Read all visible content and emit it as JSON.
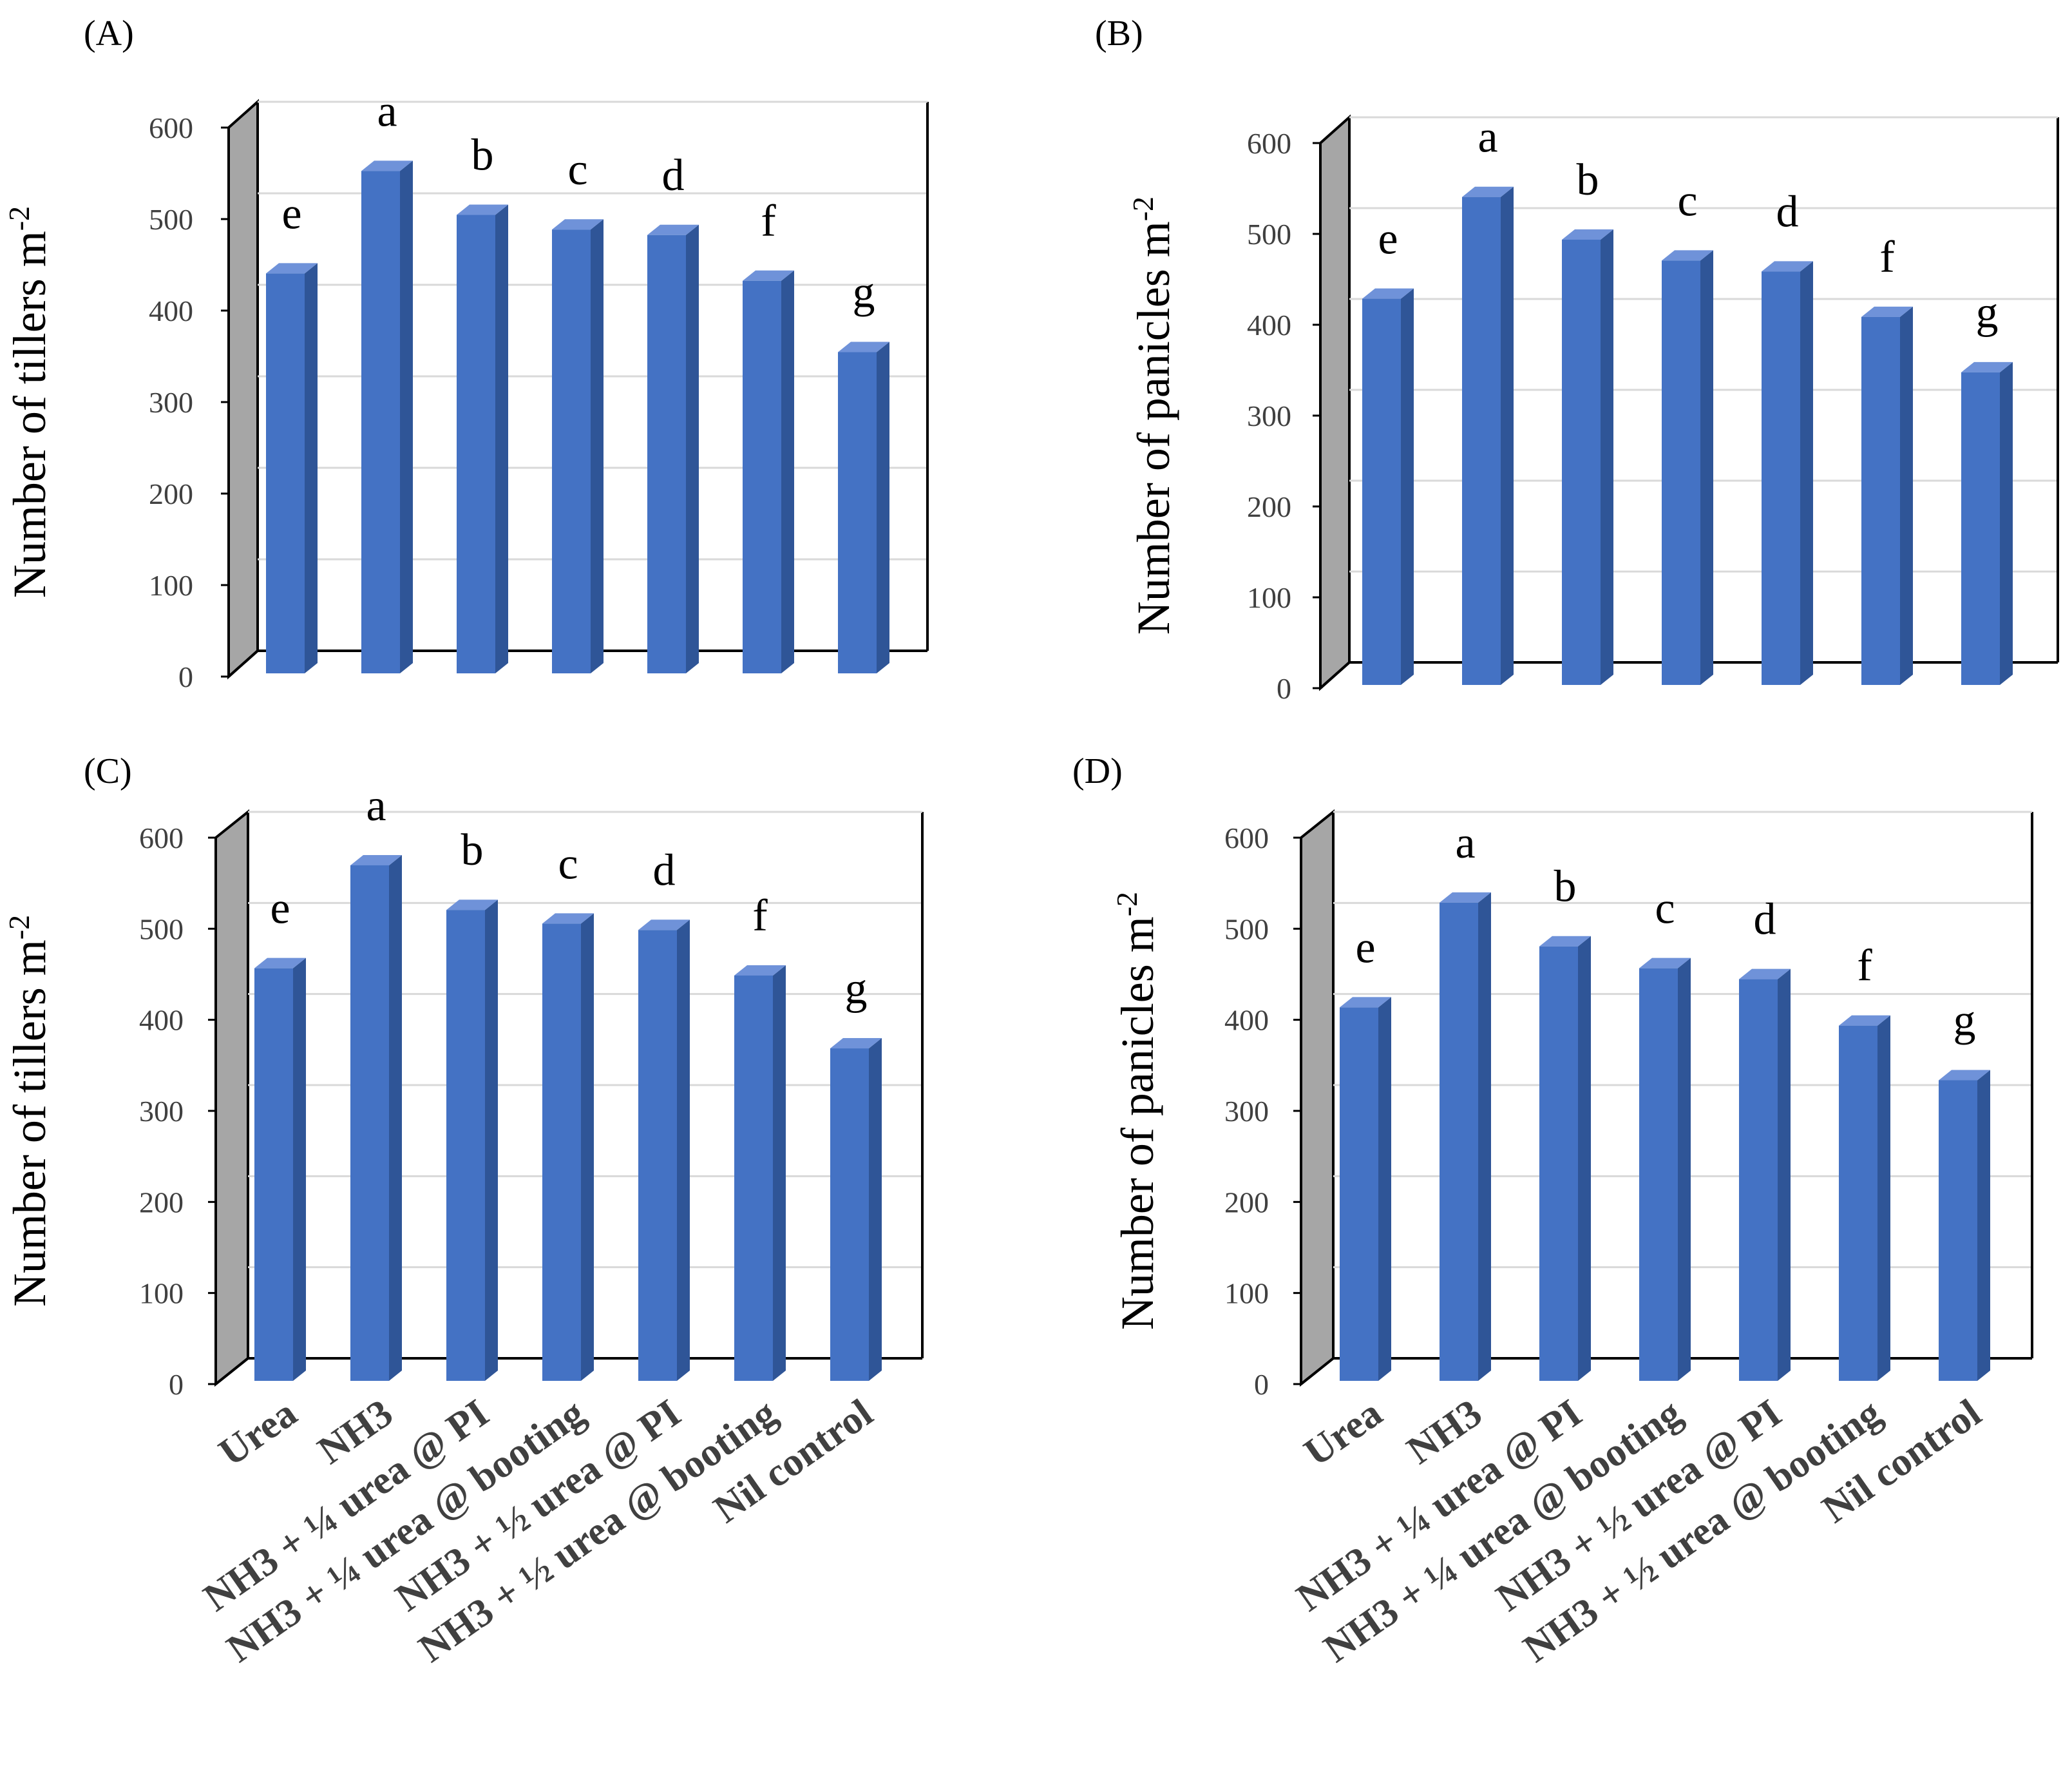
{
  "categories": [
    "Urea",
    "NH3",
    "NH3 + ¼ urea @ PI",
    "NH3 + ¼ urea @ booting",
    "NH3 + ½ urea @ PI",
    "NH3 + ½ urea @ booting",
    "Nil control"
  ],
  "colors": {
    "bar_front": "#4472C4",
    "bar_side": "#2F5597",
    "bar_top": "#6F92D9",
    "wall": "#A6A6A6",
    "wall_side": "#7F7F7F"
  },
  "chart_data": [
    {
      "type": "bar",
      "panel": "(A)",
      "ylabel": "Number of tillers m",
      "ylabel_sup": "-2",
      "ylim": [
        0,
        600
      ],
      "yticks": [
        "0",
        "100",
        "200",
        "300",
        "400",
        "500",
        "600"
      ],
      "grid": true,
      "categories": [
        "Urea",
        "NH3",
        "NH3 + ¼ urea @ PI",
        "NH3 + ¼ urea @ booting",
        "NH3 + ½ urea @ PI",
        "NH3 + ½ urea @ booting",
        "Nil control"
      ],
      "values": [
        430,
        542,
        494,
        478,
        472,
        422,
        344
      ],
      "letters": [
        "e",
        "a",
        "b",
        "c",
        "d",
        "f",
        "g"
      ]
    },
    {
      "type": "bar",
      "panel": "(B)",
      "ylabel": "Number of panicles m",
      "ylabel_sup": "-2",
      "ylim": [
        0,
        600
      ],
      "yticks": [
        "0",
        "100",
        "200",
        "300",
        "400",
        "500",
        "600"
      ],
      "grid": true,
      "categories": [
        "Urea",
        "NH3",
        "NH3 + ¼ urea @ PI",
        "NH3 + ¼ urea @ booting",
        "NH3 + ½ urea @ PI",
        "NH3 + ½ urea @ booting",
        "Nil control"
      ],
      "values": [
        418,
        530,
        483,
        460,
        448,
        398,
        337
      ],
      "letters": [
        "e",
        "a",
        "b",
        "c",
        "d",
        "f",
        "g"
      ]
    },
    {
      "type": "bar",
      "panel": "(C)",
      "ylabel": "Number of tillers m",
      "ylabel_sup": "-2",
      "ylim": [
        0,
        600
      ],
      "yticks": [
        "0",
        "100",
        "200",
        "300",
        "400",
        "500",
        "600"
      ],
      "grid": true,
      "categories": [
        "Urea",
        "NH3",
        "NH3 + ¼ urea @ PI",
        "NH3 + ¼ urea @ booting",
        "NH3 + ½ urea @ PI",
        "NH3 + ½ urea @ booting",
        "Nil control"
      ],
      "values": [
        446,
        559,
        510,
        495,
        488,
        438,
        358
      ],
      "letters": [
        "e",
        "a",
        "b",
        "c",
        "d",
        "f",
        "g"
      ]
    },
    {
      "type": "bar",
      "panel": "(D)",
      "ylabel": "Number of panicles m",
      "ylabel_sup": "-2",
      "ylim": [
        0,
        600
      ],
      "yticks": [
        "0",
        "100",
        "200",
        "300",
        "400",
        "500",
        "600"
      ],
      "grid": true,
      "categories": [
        "Urea",
        "NH3",
        "NH3 + ¼ urea @ PI",
        "NH3 + ¼ urea @ booting",
        "NH3 + ½ urea @ PI",
        "NH3 + ½ urea @ booting",
        "Nil control"
      ],
      "values": [
        403,
        518,
        470,
        446,
        434,
        383,
        323
      ],
      "letters": [
        "e",
        "a",
        "b",
        "c",
        "d",
        "f",
        "g"
      ]
    }
  ]
}
